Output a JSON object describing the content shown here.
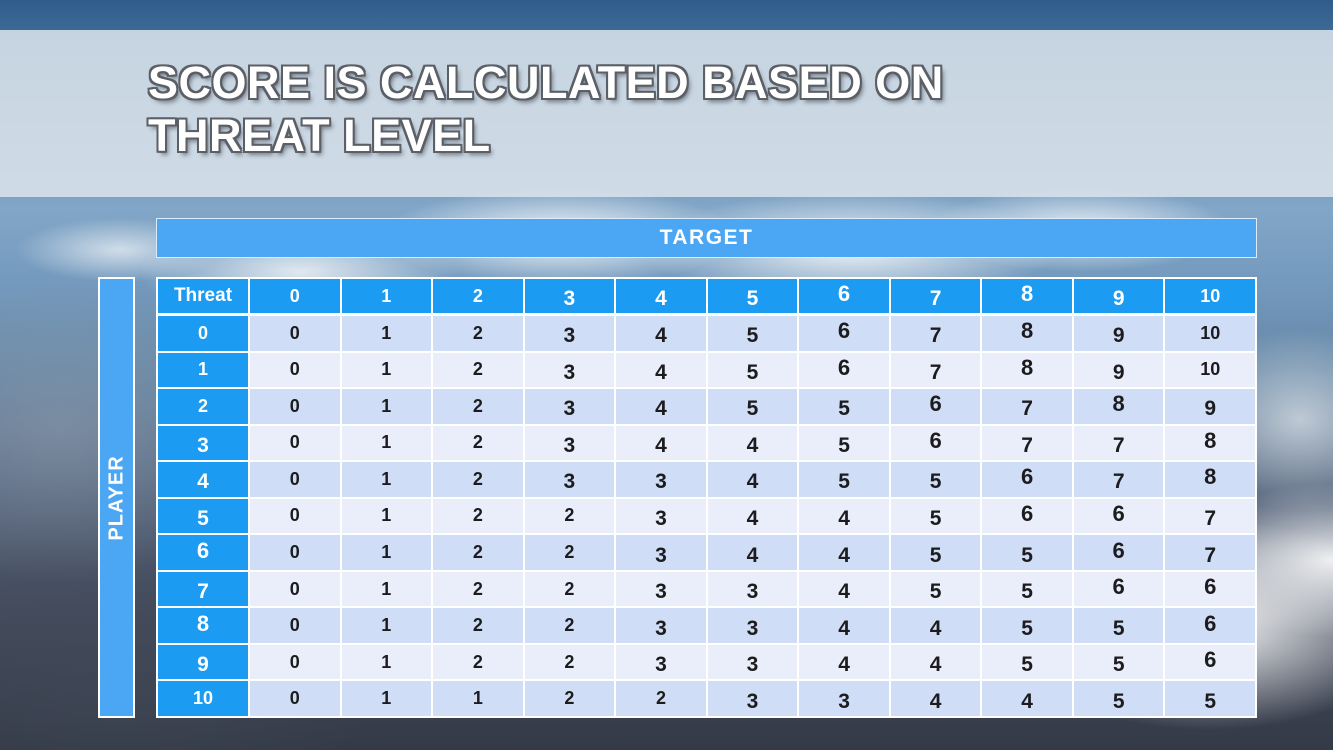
{
  "slide": {
    "title_line1": "SCORE IS CALCULATED BASED ON",
    "title_line2": "THREAT LEVEL"
  },
  "table": {
    "target_label": "TARGET",
    "player_label": "PLAYER",
    "corner_label": "Threat",
    "column_headers": [
      "0",
      "1",
      "2",
      "3",
      "4",
      "5",
      "6",
      "7",
      "8",
      "9",
      "10"
    ],
    "rows": [
      {
        "threat": "0",
        "values": [
          0,
          1,
          2,
          3,
          4,
          5,
          6,
          7,
          8,
          9,
          10
        ]
      },
      {
        "threat": "1",
        "values": [
          0,
          1,
          2,
          3,
          4,
          5,
          6,
          7,
          8,
          9,
          10
        ]
      },
      {
        "threat": "2",
        "values": [
          0,
          1,
          2,
          3,
          4,
          5,
          5,
          6,
          7,
          8,
          9
        ]
      },
      {
        "threat": "3",
        "values": [
          0,
          1,
          2,
          3,
          4,
          4,
          5,
          6,
          7,
          7,
          8
        ]
      },
      {
        "threat": "4",
        "values": [
          0,
          1,
          2,
          3,
          3,
          4,
          5,
          5,
          6,
          7,
          8
        ]
      },
      {
        "threat": "5",
        "values": [
          0,
          1,
          2,
          2,
          3,
          4,
          4,
          5,
          6,
          6,
          7
        ]
      },
      {
        "threat": "6",
        "values": [
          0,
          1,
          2,
          2,
          3,
          4,
          4,
          5,
          5,
          6,
          7
        ]
      },
      {
        "threat": "7",
        "values": [
          0,
          1,
          2,
          2,
          3,
          3,
          4,
          5,
          5,
          6,
          6
        ]
      },
      {
        "threat": "8",
        "values": [
          0,
          1,
          2,
          2,
          3,
          3,
          4,
          4,
          5,
          5,
          6
        ]
      },
      {
        "threat": "9",
        "values": [
          0,
          1,
          2,
          2,
          3,
          3,
          4,
          4,
          5,
          5,
          6
        ]
      },
      {
        "threat": "10",
        "values": [
          0,
          1,
          1,
          2,
          2,
          3,
          3,
          4,
          4,
          5,
          5
        ]
      }
    ]
  },
  "colors": {
    "header_cell_blue": "#1B9BF1",
    "axis_bar_blue": "#4BA6F3",
    "row_shade_dark": "#CFDDF6",
    "row_shade_light": "#EAEEFA",
    "cell_text": "#1C1C1E",
    "header_text": "#FFFFFF",
    "title_text": "#FFFFFF",
    "title_outline": "#5B5F66",
    "title_band": "#D9E2EB"
  }
}
